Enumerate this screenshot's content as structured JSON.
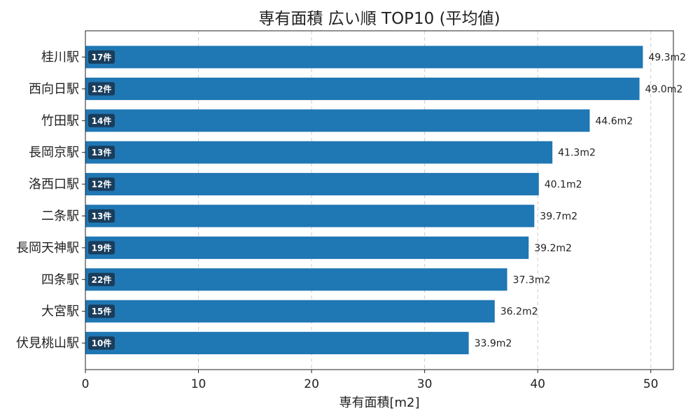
{
  "chart_data": {
    "type": "bar",
    "orientation": "horizontal",
    "title": "専有面積 広い順 TOP10 (平均値)",
    "xlabel": "専有面積[m2]",
    "ylabel": "",
    "xlim": [
      0,
      52
    ],
    "xticks": [
      0,
      10,
      20,
      30,
      40,
      50
    ],
    "grid": "x-dashed",
    "bar_color": "#1f77b4",
    "badge_color": "#1a3d5c",
    "value_suffix": "m2",
    "categories": [
      "桂川駅",
      "西向日駅",
      "竹田駅",
      "長岡京駅",
      "洛西口駅",
      "二条駅",
      "長岡天神駅",
      "四条駅",
      "大宮駅",
      "伏見桃山駅"
    ],
    "values": [
      49.3,
      49.0,
      44.6,
      41.3,
      40.1,
      39.7,
      39.2,
      37.3,
      36.2,
      33.9
    ],
    "value_labels": [
      "49.3m2",
      "49.0m2",
      "44.6m2",
      "41.3m2",
      "40.1m2",
      "39.7m2",
      "39.2m2",
      "37.3m2",
      "36.2m2",
      "33.9m2"
    ],
    "counts": [
      "17件",
      "12件",
      "14件",
      "13件",
      "12件",
      "13件",
      "19件",
      "22件",
      "15件",
      "10件"
    ]
  }
}
